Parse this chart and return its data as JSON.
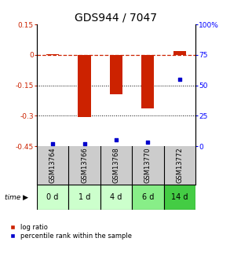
{
  "title": "GDS944 / 7047",
  "samples": [
    "GSM13764",
    "GSM13766",
    "GSM13768",
    "GSM13770",
    "GSM13772"
  ],
  "timepoints": [
    "0 d",
    "1 d",
    "4 d",
    "6 d",
    "14 d"
  ],
  "log_ratios": [
    0.005,
    -0.305,
    -0.195,
    -0.265,
    0.02
  ],
  "percentile_ranks": [
    2,
    2,
    5,
    3,
    55
  ],
  "left_ylim": [
    -0.45,
    0.15
  ],
  "left_yticks": [
    0.15,
    0,
    -0.15,
    -0.3,
    -0.45
  ],
  "left_ytick_labels": [
    "0.15",
    "0",
    "-0.15",
    "-0.3",
    "-0.45"
  ],
  "right_ylim": [
    0,
    100
  ],
  "right_yticks": [
    0,
    25,
    50,
    75,
    100
  ],
  "right_ytick_labels": [
    "0",
    "25",
    "50",
    "75",
    "100%"
  ],
  "bar_color": "#cc2200",
  "scatter_color": "#0000cc",
  "dashed_line_color": "#cc2200",
  "sample_box_color": "#cccccc",
  "time_box_colors": [
    "#ccffcc",
    "#ccffcc",
    "#ccffcc",
    "#88ee88",
    "#44cc44"
  ],
  "title_fontsize": 10,
  "tick_fontsize": 6.5,
  "sample_fontsize": 6,
  "time_fontsize": 7,
  "legend_fontsize": 6,
  "bar_width": 0.4
}
